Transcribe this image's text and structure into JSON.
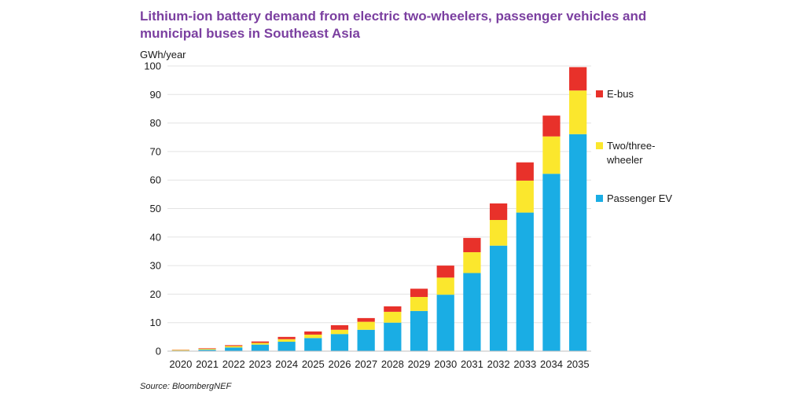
{
  "chart_data": {
    "type": "bar",
    "stacked": true,
    "title": "Lithium-ion battery demand from electric two-wheelers, passenger vehicles and municipal buses in Southeast Asia",
    "ylabel": "GWh/year",
    "ylim": [
      0,
      100
    ],
    "yticks": [
      0,
      10,
      20,
      30,
      40,
      50,
      60,
      70,
      80,
      90,
      100
    ],
    "categories": [
      "2020",
      "2021",
      "2022",
      "2023",
      "2024",
      "2025",
      "2026",
      "2027",
      "2028",
      "2029",
      "2030",
      "2031",
      "2032",
      "2033",
      "2034",
      "2035"
    ],
    "series": [
      {
        "name": "Passenger EV",
        "color": "#1aade4",
        "values": [
          0.2,
          0.5,
          1.3,
          2.3,
          3.3,
          4.6,
          6.0,
          7.5,
          10.0,
          14.1,
          19.8,
          27.4,
          37.0,
          48.6,
          62.2,
          76.1
        ]
      },
      {
        "name": "Two/three-wheeler",
        "color": "#fbe72d",
        "values": [
          0.2,
          0.3,
          0.5,
          0.6,
          0.9,
          1.2,
          1.5,
          2.8,
          3.8,
          4.9,
          6.0,
          7.3,
          9.0,
          11.2,
          13.1,
          15.3
        ]
      },
      {
        "name": "E-bus",
        "color": "#e8312a",
        "values": [
          0.1,
          0.2,
          0.3,
          0.5,
          0.8,
          1.1,
          1.6,
          1.3,
          1.9,
          2.9,
          4.2,
          5.0,
          5.8,
          6.4,
          7.3,
          8.2
        ]
      }
    ],
    "legend": {
      "placement": "right",
      "order": [
        "E-bus",
        "Two/three-wheeler",
        "Passenger EV"
      ]
    },
    "grid": true,
    "source": "Source: BloombergNEF"
  }
}
